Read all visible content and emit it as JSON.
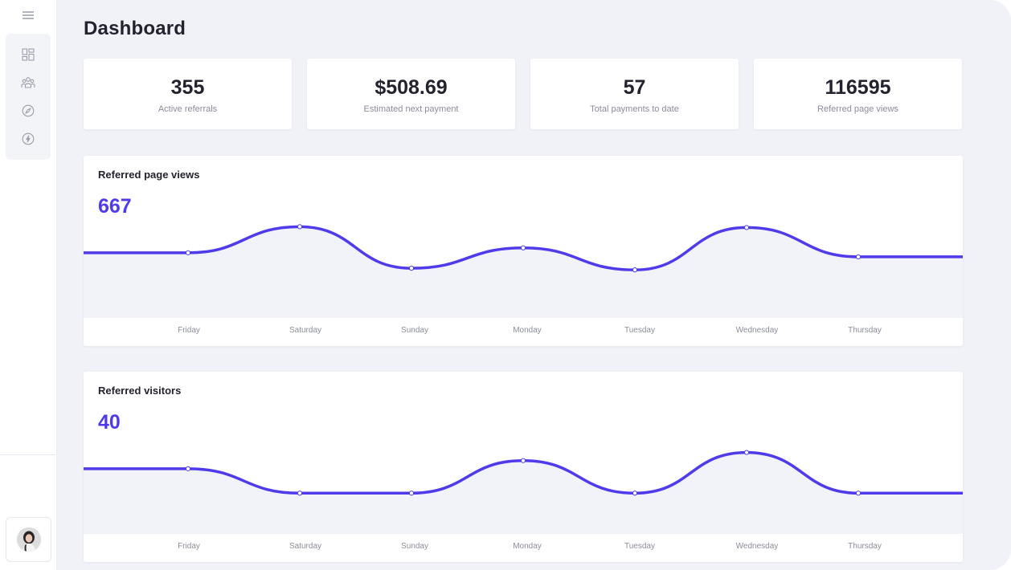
{
  "page": {
    "title": "Dashboard"
  },
  "sidebar": {
    "menu_icon": "hamburger-icon",
    "items": [
      {
        "icon": "dashboard-grid-icon"
      },
      {
        "icon": "group-icon"
      },
      {
        "icon": "compass-icon"
      },
      {
        "icon": "lightning-icon"
      }
    ],
    "avatar_icon": "user-avatar"
  },
  "stats": [
    {
      "value": "355",
      "label": "Active referrals"
    },
    {
      "value": "$508.69",
      "label": "Estimated next payment"
    },
    {
      "value": "57",
      "label": "Total payments to date"
    },
    {
      "value": "116595",
      "label": "Referred page views"
    }
  ],
  "colors": {
    "accent": "#4f3bea",
    "area": "#f2f3f9",
    "background": "#f1f2f8"
  },
  "chart_data": [
    {
      "type": "line",
      "title": "Referred page views",
      "headline": "667",
      "categories": [
        "Friday",
        "Saturday",
        "Sunday",
        "Monday",
        "Tuesday",
        "Wednesday",
        "Thursday"
      ],
      "series": [
        {
          "values": [
            80,
            112,
            61,
            86,
            59,
            111,
            75
          ]
        }
      ],
      "ylim": [
        0,
        140
      ],
      "grid": false
    },
    {
      "type": "line",
      "title": "Referred visitors",
      "headline": "40",
      "categories": [
        "Friday",
        "Saturday",
        "Sunday",
        "Monday",
        "Tuesday",
        "Wednesday",
        "Thursday"
      ],
      "series": [
        {
          "values": [
            8,
            5,
            5,
            9,
            5,
            10,
            5
          ]
        }
      ],
      "ylim": [
        0,
        14
      ],
      "grid": false
    }
  ]
}
